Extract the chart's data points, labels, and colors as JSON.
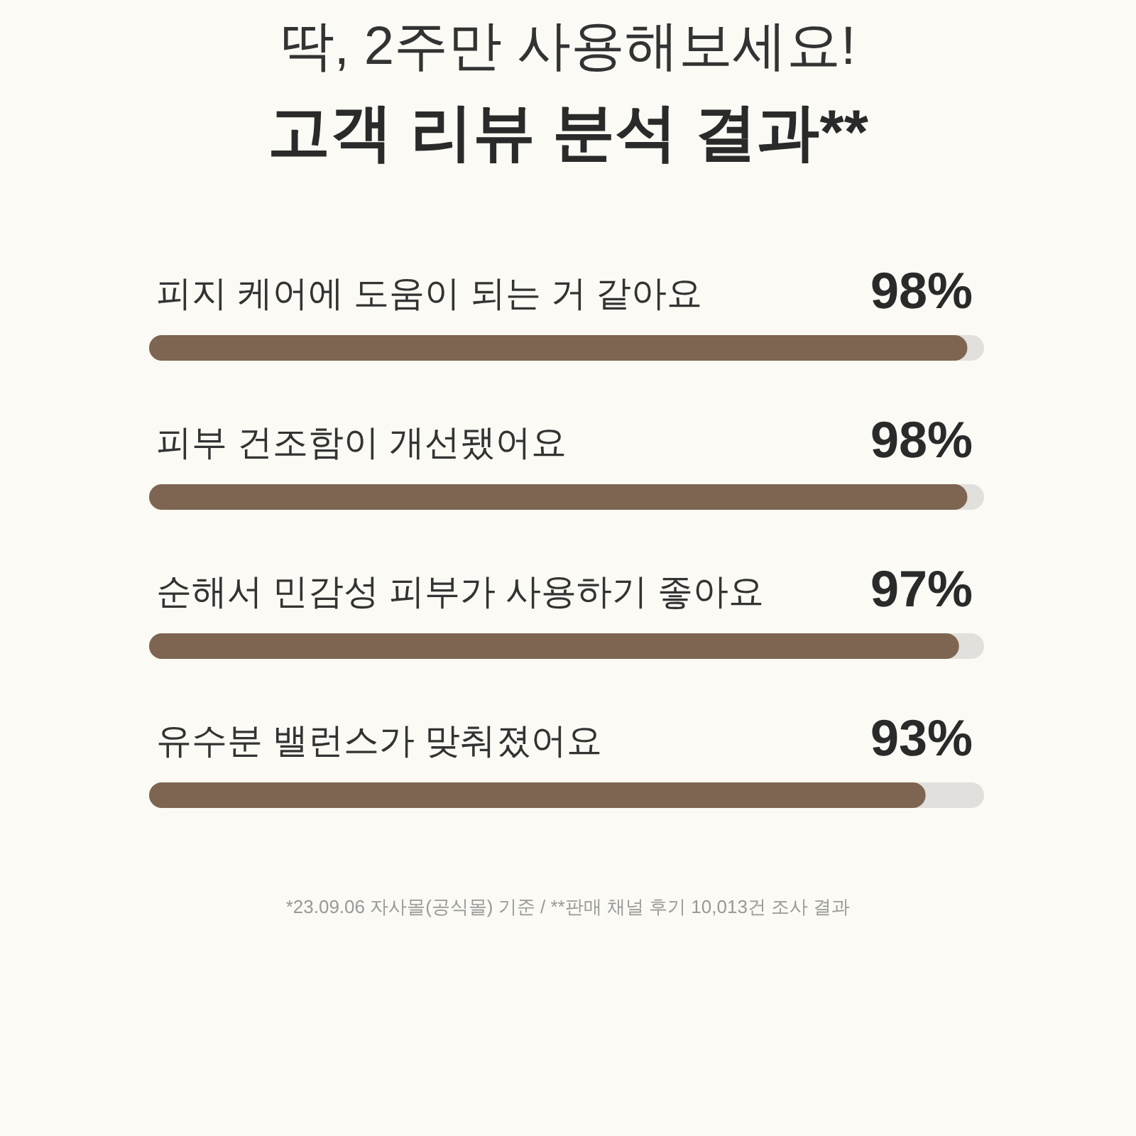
{
  "chart_data": {
    "type": "bar",
    "orientation": "horizontal",
    "subtitle": "딱, 2주만 사용해보세요!",
    "title": "고객 리뷰 분석 결과**",
    "categories": [
      "피지 케어에 도움이 되는 거 같아요",
      "피부 건조함이 개선됐어요",
      "순해서 민감성 피부가 사용하기 좋아요",
      "유수분 밸런스가 맞춰졌어요"
    ],
    "values": [
      98,
      98,
      97,
      93
    ],
    "value_labels": [
      "98%",
      "98%",
      "97%",
      "93%"
    ],
    "color": "#7d6552",
    "xlim": [
      0,
      100
    ],
    "annotations": [
      "*23.09.06 자사몰(공식몰) 기준  /  **판매 채널 후기 10,013건 조사 결과"
    ]
  }
}
